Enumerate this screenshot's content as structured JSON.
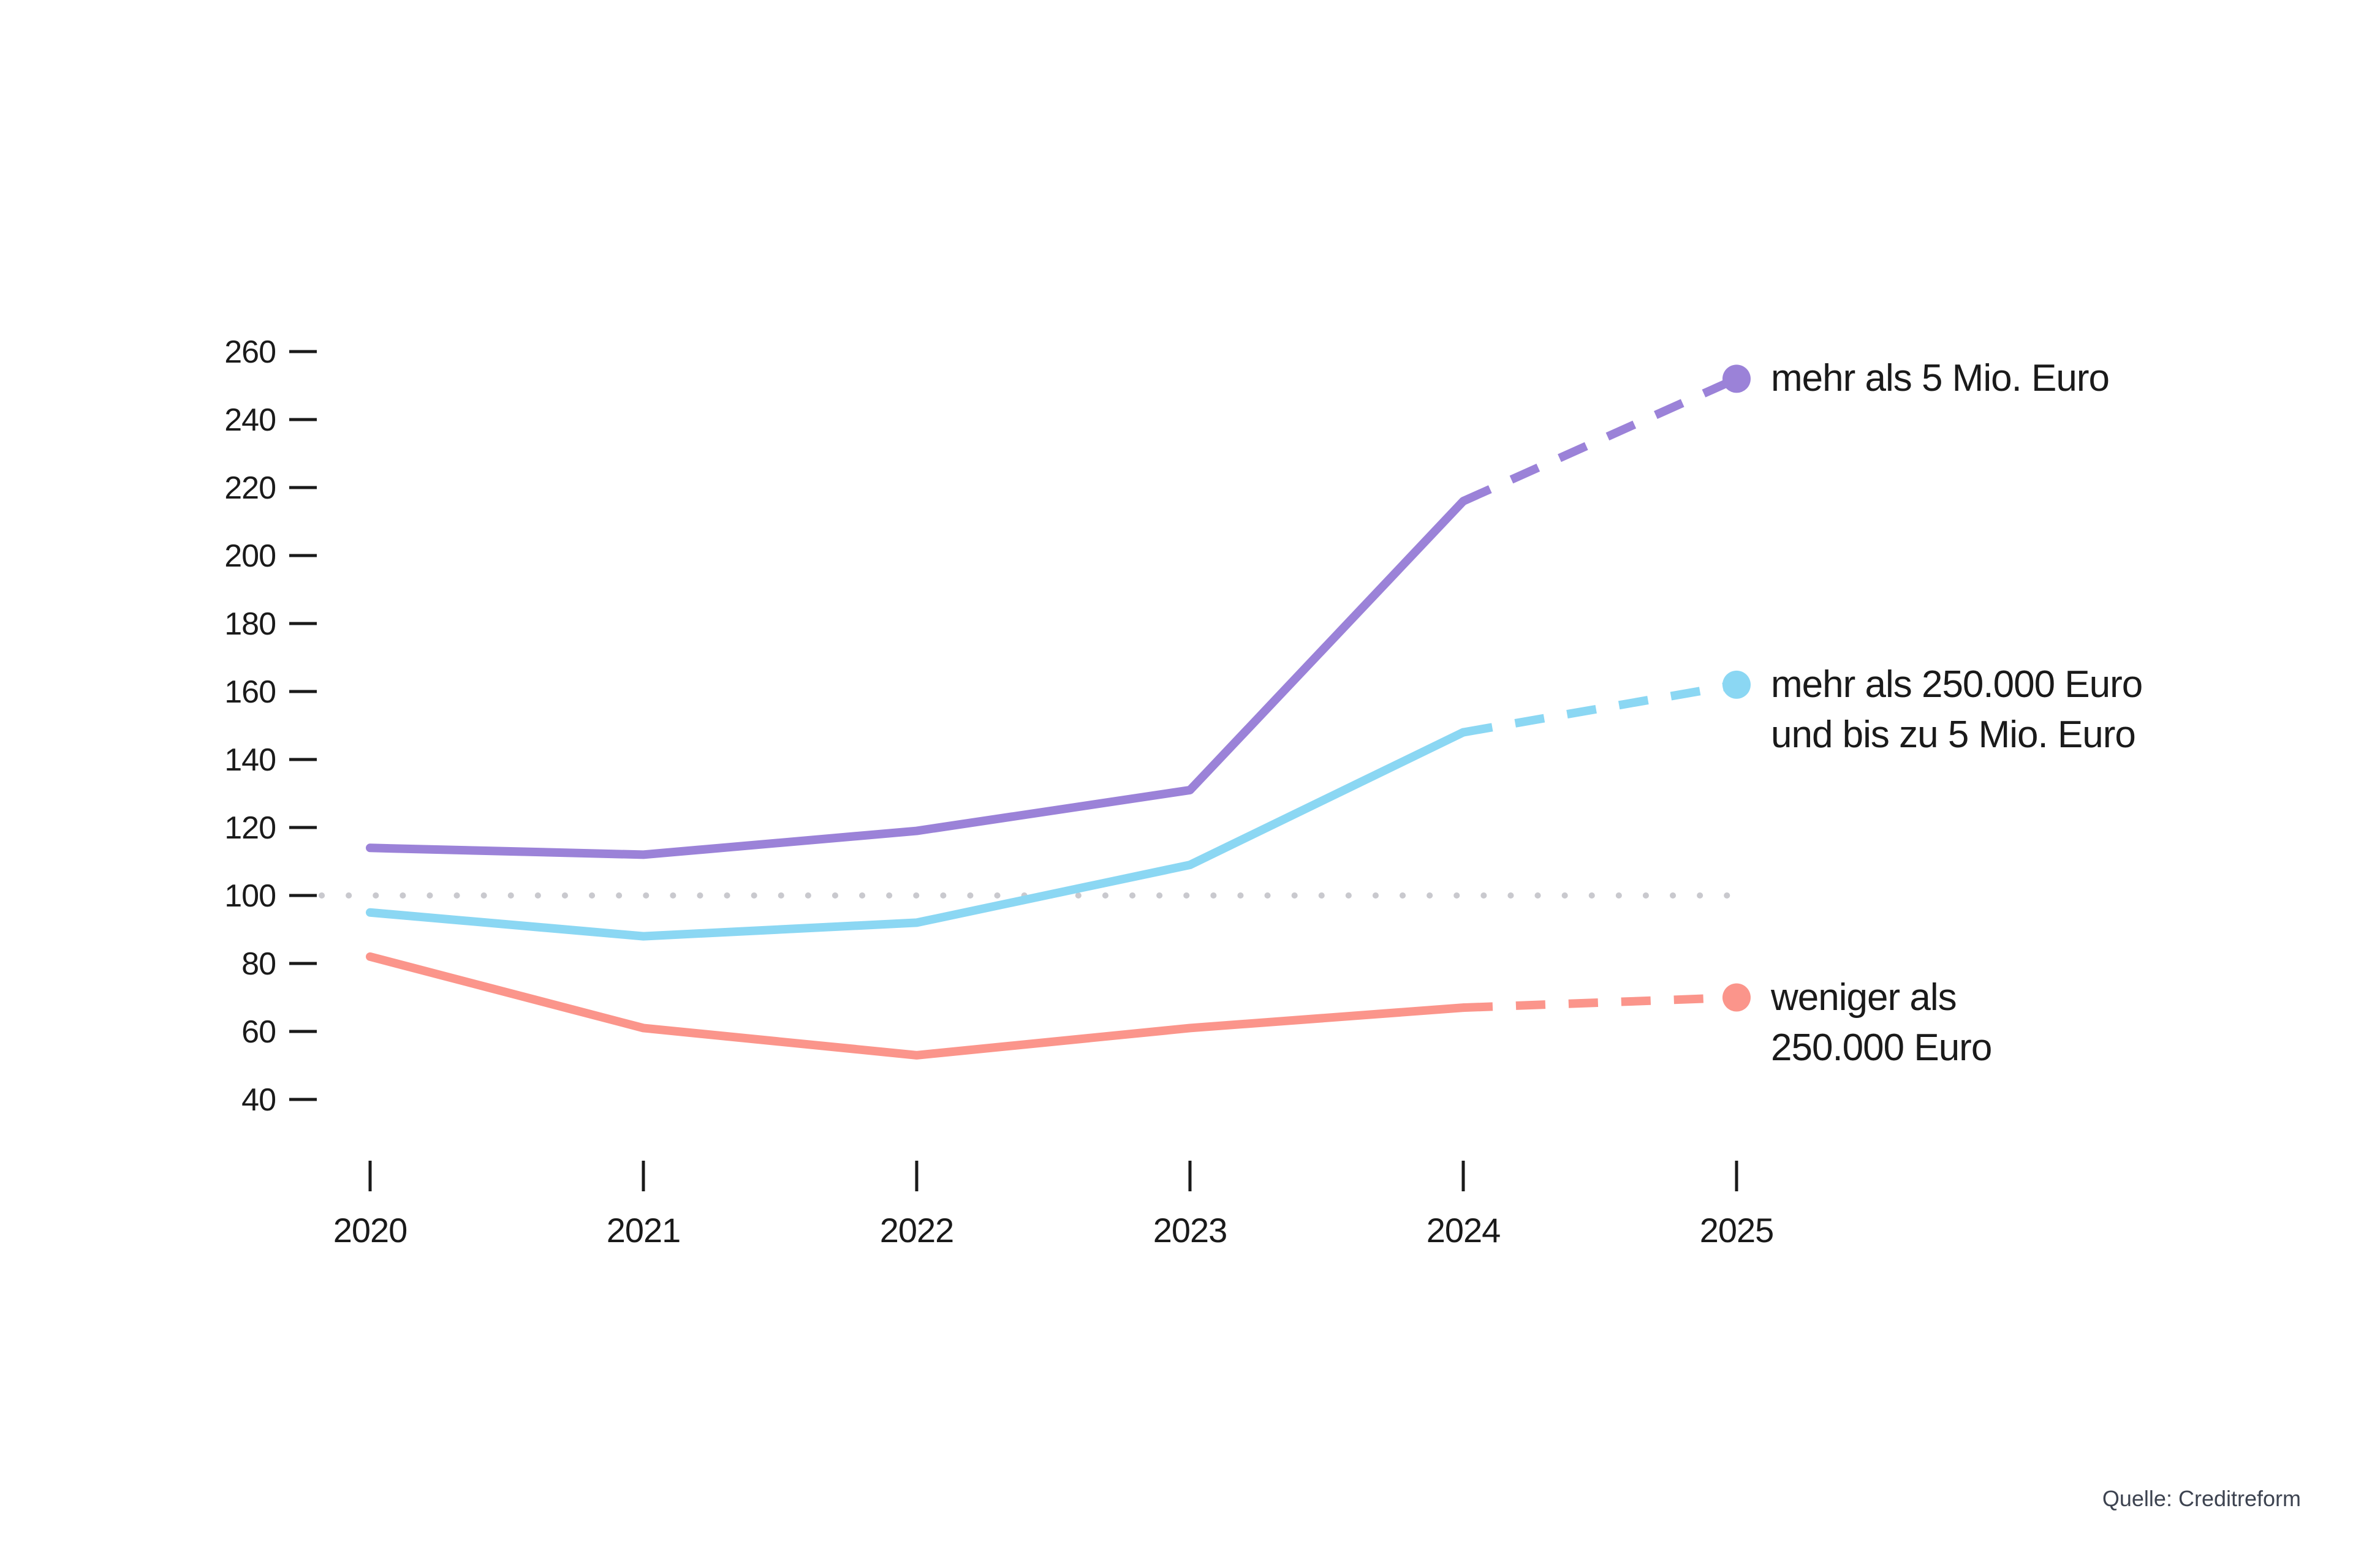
{
  "chart_data": {
    "type": "line",
    "title": "",
    "x": [
      "2020",
      "2021",
      "2022",
      "2023",
      "2024",
      "2025"
    ],
    "series": [
      {
        "name": "mehr als 5 Mio. Euro",
        "label_lines": [
          "mehr als 5 Mio. Euro"
        ],
        "color": "#9b82d8",
        "values": [
          114,
          112,
          119,
          131,
          216,
          252
        ],
        "forecast_from_index": 4
      },
      {
        "name": "mehr als 250.000 Euro und bis zu 5 Mio. Euro",
        "label_lines": [
          "mehr als 250.000 Euro",
          "und bis zu 5 Mio. Euro"
        ],
        "color": "#8bd7f3",
        "values": [
          95,
          88,
          92,
          109,
          148,
          162
        ],
        "forecast_from_index": 4
      },
      {
        "name": "weniger als 250.000 Euro",
        "label_lines": [
          "weniger als",
          "250.000 Euro"
        ],
        "color": "#fb958b",
        "values": [
          82,
          61,
          53,
          61,
          67,
          70
        ],
        "forecast_from_index": 4
      }
    ],
    "ylim": [
      40,
      260
    ],
    "y_ticks": [
      260,
      240,
      220,
      200,
      180,
      160,
      140,
      120,
      100,
      80,
      60,
      40
    ],
    "reference_line": {
      "value": 100,
      "color": "#c9c9ce",
      "style": "dotted"
    },
    "xlabel": "",
    "ylabel": "",
    "grid": "off",
    "legend_position": "right of line endpoints",
    "line_style_note": "solid 2020-2024, dashed forecast 2024-2025, filled circle endpoint at 2025"
  },
  "axis": {
    "text_color": "#1a1a1a"
  },
  "source": {
    "text": "Quelle: Creditreform",
    "color": "#3d4350"
  }
}
